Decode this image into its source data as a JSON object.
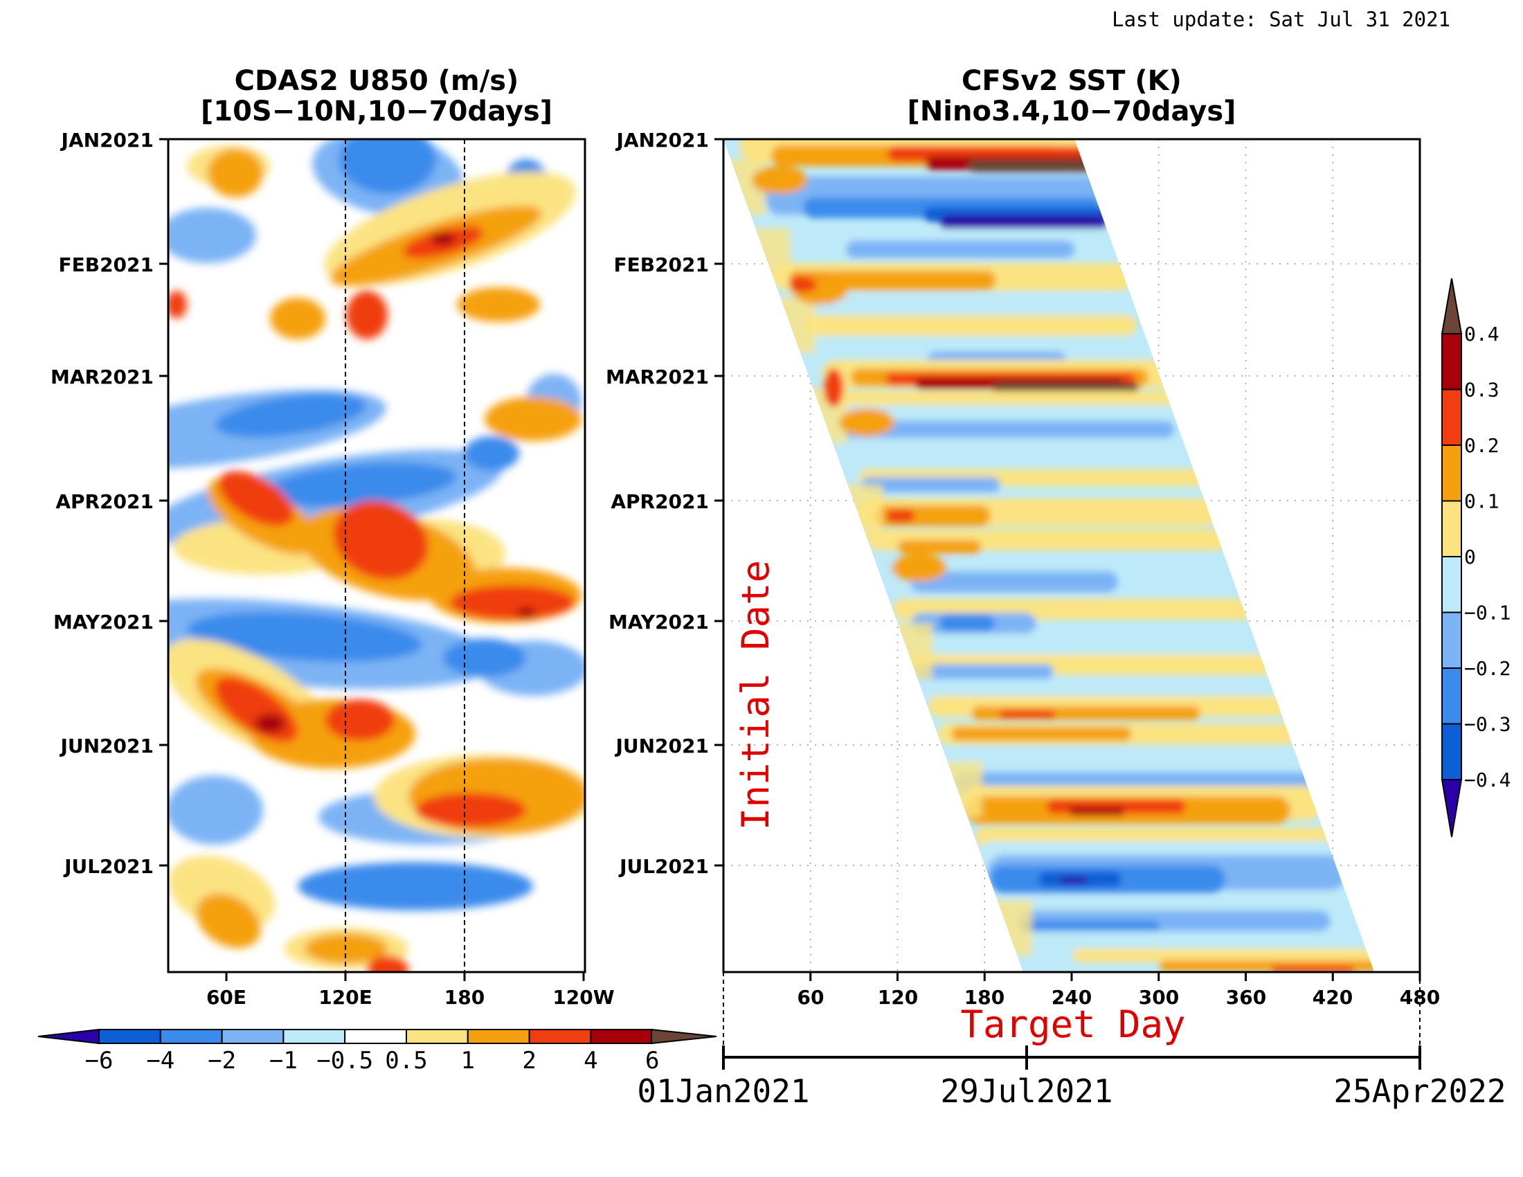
{
  "header": {
    "last_update": "Last update: Sat Jul 31 2021"
  },
  "chart_data": [
    {
      "type": "heatmap",
      "title": "CDAS2 U850 (m/s)",
      "subtitle": "[10S−10N,10−70days]",
      "xlabel": "",
      "ylabel": "",
      "x_ticks": [
        "60E",
        "120E",
        "180",
        "120W"
      ],
      "x_tick_lon": [
        60,
        120,
        180,
        240
      ],
      "xlim": [
        30,
        240
      ],
      "y_ticks": [
        "JAN2021",
        "FEB2021",
        "MAR2021",
        "APR2021",
        "MAY2021",
        "JUN2021",
        "JUL2021"
      ],
      "reference_lines_lon": [
        120,
        180
      ],
      "colorbar": {
        "levels": [
          "−6",
          "−4",
          "−2",
          "−1",
          "−0.5",
          "0.5",
          "1",
          "2",
          "4",
          "6"
        ],
        "colors": [
          "#2a00a8",
          "#0d5fd6",
          "#3a8bec",
          "#7cb3f5",
          "#bde9f8",
          "#ffffff",
          "#fbe382",
          "#f5a00e",
          "#f03e10",
          "#a8000a",
          "#6b4636"
        ],
        "extend": "both"
      }
    },
    {
      "type": "heatmap",
      "title": "CFSv2 SST (K)",
      "subtitle": "[Nino3.4,10−70days]",
      "xlabel": "Target Day",
      "ylabel": "Initial Date",
      "x_ticks": [
        "60",
        "120",
        "180",
        "240",
        "300",
        "360",
        "420",
        "480"
      ],
      "xlim": [
        0,
        480
      ],
      "y_ticks": [
        "JAN2021",
        "FEB2021",
        "MAR2021",
        "APR2021",
        "MAY2021",
        "JUN2021",
        "JUL2021"
      ],
      "date_axis": {
        "labels": [
          "01Jan2021",
          "29Jul2021",
          "25Apr2022"
        ],
        "day": [
          0,
          209,
          480
        ]
      },
      "colorbar": {
        "levels": [
          "0.4",
          "0.3",
          "0.2",
          "0.1",
          "0",
          "−0.1",
          "−0.2",
          "−0.3",
          "−0.4"
        ],
        "colors": [
          "#6b4636",
          "#a8000a",
          "#f03e10",
          "#f5a00e",
          "#fbe382",
          "#bde9f8",
          "#7cb3f5",
          "#3a8bec",
          "#0d5fd6",
          "#2a00a8"
        ],
        "extend": "both"
      }
    }
  ]
}
